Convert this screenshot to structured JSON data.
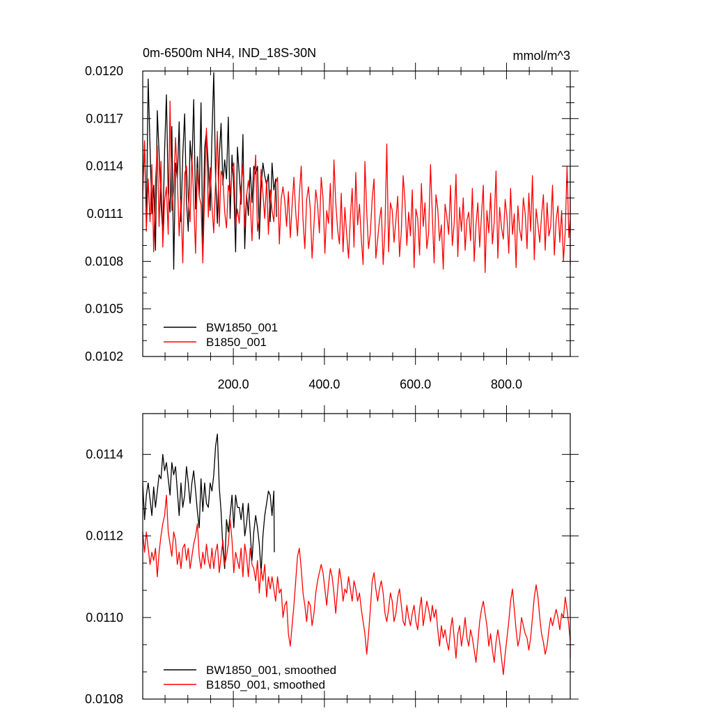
{
  "chart_data": [
    {
      "type": "line",
      "title": "0m-6500m NH4, IND_18S-30N",
      "units": "mmol/m^3",
      "xlim": [
        1,
        940
      ],
      "ylim": [
        0.0102,
        0.012
      ],
      "yticks": [
        0.0102,
        0.0105,
        0.0108,
        0.0111,
        0.0114,
        0.0117,
        0.012
      ],
      "ytick_labels": [
        "0.0102",
        "0.0105",
        "0.0108",
        "0.0111",
        "0.0114",
        "0.0117",
        "0.0120"
      ],
      "xticks": [
        200,
        400,
        600,
        800
      ],
      "xtick_labels": [
        "200.0",
        "400.0",
        "600.0",
        "800.0"
      ],
      "legend_position": "bottom-left",
      "series": [
        {
          "name": "BW1850_001",
          "color": "#000000",
          "x_range": [
            1,
            295
          ],
          "x_step": 4,
          "values": [
            0.01125,
            0.01155,
            0.01104,
            0.01195,
            0.01152,
            0.0111,
            0.01128,
            0.01087,
            0.01175,
            0.01148,
            0.01116,
            0.01098,
            0.0115,
            0.01185,
            0.01124,
            0.01111,
            0.01165,
            0.01075,
            0.01142,
            0.01132,
            0.01168,
            0.01105,
            0.01147,
            0.01173,
            0.01118,
            0.01099,
            0.01156,
            0.0114,
            0.01182,
            0.01113,
            0.01146,
            0.01121,
            0.0118,
            0.01087,
            0.01151,
            0.01162,
            0.0114,
            0.01112,
            0.01159,
            0.01199,
            0.01133,
            0.01104,
            0.01146,
            0.01167,
            0.01128,
            0.01144,
            0.01132,
            0.01171,
            0.01107,
            0.01147,
            0.01126,
            0.01086,
            0.01152,
            0.01135,
            0.01116,
            0.0116,
            0.01088,
            0.01122,
            0.01109,
            0.01139,
            0.01117,
            0.0114,
            0.01135,
            0.0114,
            0.01094,
            0.01126,
            0.01142,
            0.01134,
            0.01128,
            0.01135,
            0.01105,
            0.01142,
            0.01125,
            0.01132,
            0.01108
          ]
        },
        {
          "name": "B1850_001",
          "color": "#ff0000",
          "x_range": [
            1,
            940
          ],
          "x_step": 4,
          "values": [
            0.0112,
            0.01156,
            0.01099,
            0.01132,
            0.01105,
            0.01141,
            0.01086,
            0.0113,
            0.01153,
            0.01102,
            0.01143,
            0.01089,
            0.01118,
            0.01127,
            0.01097,
            0.01181,
            0.01112,
            0.01126,
            0.01158,
            0.01132,
            0.01096,
            0.01119,
            0.01079,
            0.01135,
            0.0114,
            0.0112,
            0.01105,
            0.01147,
            0.01118,
            0.01085,
            0.01139,
            0.01121,
            0.01116,
            0.01079,
            0.01124,
            0.01164,
            0.01108,
            0.01139,
            0.01115,
            0.01098,
            0.0113,
            0.01162,
            0.01102,
            0.01137,
            0.01133,
            0.01111,
            0.01101,
            0.01128,
            0.01122,
            0.01138,
            0.01142,
            0.01103,
            0.01113,
            0.01104,
            0.01127,
            0.01141,
            0.01102,
            0.01121,
            0.01131,
            0.01119,
            0.01093,
            0.01126,
            0.01147,
            0.01099,
            0.01108,
            0.01138,
            0.01123,
            0.01107,
            0.01131,
            0.01097,
            0.01125,
            0.01112,
            0.01105,
            0.01129,
            0.01133,
            0.01091,
            0.01119,
            0.01127,
            0.01118,
            0.01102,
            0.01124,
            0.01095,
            0.01115,
            0.01133,
            0.01111,
            0.01096,
            0.01122,
            0.0114,
            0.01106,
            0.01088,
            0.01119,
            0.01127,
            0.01113,
            0.01082,
            0.01103,
            0.01125,
            0.01116,
            0.01098,
            0.01133,
            0.0112,
            0.01085,
            0.01112,
            0.01104,
            0.01129,
            0.01094,
            0.01144,
            0.01117,
            0.011,
            0.01091,
            0.01123,
            0.01086,
            0.01114,
            0.01097,
            0.01082,
            0.01108,
            0.01126,
            0.01089,
            0.01136,
            0.01103,
            0.01116,
            0.01094,
            0.01078,
            0.01143,
            0.01111,
            0.01088,
            0.01098,
            0.0112,
            0.01132,
            0.01082,
            0.01094,
            0.01106,
            0.01114,
            0.01078,
            0.01101,
            0.01154,
            0.01086,
            0.01117,
            0.01112,
            0.01092,
            0.01106,
            0.01121,
            0.01083,
            0.01099,
            0.01134,
            0.01118,
            0.0109,
            0.01111,
            0.01096,
            0.01125,
            0.01076,
            0.01113,
            0.01107,
            0.01084,
            0.01129,
            0.01102,
            0.01117,
            0.01088,
            0.01098,
            0.01141,
            0.01109,
            0.01079,
            0.01122,
            0.01113,
            0.01093,
            0.01103,
            0.01075,
            0.01116,
            0.01108,
            0.01097,
            0.01128,
            0.0109,
            0.01104,
            0.01135,
            0.01083,
            0.01114,
            0.01099,
            0.0112,
            0.01087,
            0.01106,
            0.01111,
            0.01093,
            0.01126,
            0.0108,
            0.01103,
            0.01117,
            0.01089,
            0.01109,
            0.01128,
            0.01073,
            0.01112,
            0.01098,
            0.01123,
            0.01091,
            0.01105,
            0.01137,
            0.01082,
            0.01114,
            0.01101,
            0.01094,
            0.01119,
            0.01108,
            0.01085,
            0.01126,
            0.01097,
            0.0111,
            0.01076,
            0.01115,
            0.011,
            0.01093,
            0.0112,
            0.0111,
            0.01088,
            0.01123,
            0.01099,
            0.01134,
            0.01081,
            0.01113,
            0.01103,
            0.01092,
            0.01109,
            0.01122,
            0.01087,
            0.01117,
            0.01096,
            0.01102,
            0.01128,
            0.01084,
            0.01106,
            0.01115,
            0.01092,
            0.01112,
            0.0108,
            0.01099,
            0.0114,
            0.01095,
            0.01107,
            0.01121,
            0.01086,
            0.01104,
            0.01117,
            0.01091,
            0.01109,
            0.01098,
            0.01113,
            0.01078,
            0.01102,
            0.01096
          ]
        }
      ]
    },
    {
      "type": "line",
      "title": "",
      "xlim": [
        1,
        940
      ],
      "ylim": [
        0.0108,
        0.0115
      ],
      "yticks": [
        0.0108,
        0.011,
        0.0112,
        0.0114
      ],
      "ytick_labels": [
        "0.0108",
        "0.0110",
        "0.0112",
        "0.0114"
      ],
      "xticks": [
        200,
        400,
        600,
        800
      ],
      "xtick_labels": [],
      "legend_position": "bottom-left",
      "series": [
        {
          "name": "BW1850_001, smoothed",
          "color": "#000000",
          "x_range": [
            1,
            290
          ],
          "x_step": 4,
          "values": [
            0.01133,
            0.01124,
            0.0113,
            0.01133,
            0.01129,
            0.01125,
            0.01132,
            0.01127,
            0.01131,
            0.01135,
            0.01134,
            0.0114,
            0.01136,
            0.01138,
            0.01134,
            0.0113,
            0.01138,
            0.01135,
            0.01137,
            0.01131,
            0.01125,
            0.01133,
            0.01127,
            0.0113,
            0.01137,
            0.01133,
            0.01128,
            0.01133,
            0.01136,
            0.01131,
            0.01126,
            0.01122,
            0.01134,
            0.01126,
            0.01133,
            0.01128,
            0.01127,
            0.01133,
            0.01131,
            0.01135,
            0.01142,
            0.01145,
            0.01132,
            0.01126,
            0.01117,
            0.01112,
            0.01124,
            0.01121,
            0.01125,
            0.0113,
            0.01122,
            0.0113,
            0.01127,
            0.01127,
            0.01124,
            0.01128,
            0.0112,
            0.01123,
            0.01128,
            0.01121,
            0.01114,
            0.01121,
            0.01125,
            0.01122,
            0.01118,
            0.01111,
            0.0112,
            0.01125,
            0.01128,
            0.01131,
            0.0113,
            0.01125,
            0.01131,
            0.01116
          ]
        },
        {
          "name": "B1850_001, smoothed",
          "color": "#ff0000",
          "x_range": [
            1,
            940
          ],
          "x_step": 4,
          "values": [
            0.01121,
            0.01116,
            0.01121,
            0.01117,
            0.01113,
            0.01116,
            0.01114,
            0.01117,
            0.0111,
            0.01116,
            0.0112,
            0.01123,
            0.01125,
            0.0113,
            0.01121,
            0.01118,
            0.01115,
            0.01121,
            0.01119,
            0.01113,
            0.01116,
            0.01112,
            0.01117,
            0.01118,
            0.01114,
            0.01117,
            0.01112,
            0.01115,
            0.01118,
            0.0112,
            0.01123,
            0.01115,
            0.01112,
            0.01116,
            0.01113,
            0.01118,
            0.01114,
            0.01112,
            0.01117,
            0.01112,
            0.01116,
            0.01118,
            0.01111,
            0.01115,
            0.01119,
            0.01113,
            0.01115,
            0.01118,
            0.01124,
            0.01119,
            0.01111,
            0.01116,
            0.01114,
            0.01112,
            0.01117,
            0.0111,
            0.01118,
            0.01115,
            0.0111,
            0.01117,
            0.01113,
            0.01112,
            0.01109,
            0.01114,
            0.01106,
            0.01112,
            0.01109,
            0.01113,
            0.01105,
            0.0111,
            0.01107,
            0.0111,
            0.01107,
            0.01104,
            0.0111,
            0.01106,
            0.01107,
            0.011,
            0.01103,
            0.01104,
            0.01096,
            0.01093,
            0.01098,
            0.01103,
            0.01109,
            0.01115,
            0.01117,
            0.01112,
            0.01106,
            0.01103,
            0.01099,
            0.01104,
            0.01103,
            0.01098,
            0.01101,
            0.01106,
            0.01109,
            0.01111,
            0.01113,
            0.01111,
            0.01107,
            0.01103,
            0.01108,
            0.01112,
            0.0111,
            0.01106,
            0.01101,
            0.01107,
            0.01112,
            0.01109,
            0.01104,
            0.01107,
            0.01106,
            0.0111,
            0.01107,
            0.01104,
            0.01109,
            0.01107,
            0.01104,
            0.01106,
            0.01102,
            0.01099,
            0.01096,
            0.01091,
            0.01096,
            0.01102,
            0.01109,
            0.01111,
            0.01107,
            0.01104,
            0.01107,
            0.01109,
            0.01106,
            0.01101,
            0.01099,
            0.01102,
            0.01106,
            0.01104,
            0.01099,
            0.01101,
            0.01105,
            0.01107,
            0.01103,
            0.01099,
            0.01098,
            0.01103,
            0.011,
            0.01098,
            0.01101,
            0.01103,
            0.01099,
            0.01097,
            0.01102,
            0.01105,
            0.01098,
            0.01101,
            0.01104,
            0.01102,
            0.01099,
            0.01103,
            0.011,
            0.01102,
            0.01097,
            0.01093,
            0.01098,
            0.01095,
            0.01097,
            0.01094,
            0.01092,
            0.01097,
            0.011,
            0.01095,
            0.0109,
            0.01096,
            0.01098,
            0.01093,
            0.01096,
            0.011,
            0.01095,
            0.01093,
            0.01097,
            0.01095,
            0.01092,
            0.01089,
            0.01094,
            0.01099,
            0.01102,
            0.01104,
            0.01101,
            0.01098,
            0.01093,
            0.01096,
            0.01092,
            0.01089,
            0.01094,
            0.01097,
            0.01094,
            0.0109,
            0.01086,
            0.01091,
            0.01095,
            0.01099,
            0.01104,
            0.01107,
            0.01102,
            0.01097,
            0.01093,
            0.01095,
            0.011,
            0.01098,
            0.01096,
            0.01095,
            0.01092,
            0.01095,
            0.011,
            0.01105,
            0.01108,
            0.01105,
            0.011,
            0.01096,
            0.01094,
            0.01091,
            0.01093,
            0.01097,
            0.011,
            0.01098,
            0.011,
            0.01102,
            0.011,
            0.01097,
            0.01101,
            0.011,
            0.01105,
            0.01102,
            0.01098,
            0.01094,
            0.01091,
            0.01095,
            0.01093,
            0.0109
          ]
        }
      ]
    }
  ]
}
